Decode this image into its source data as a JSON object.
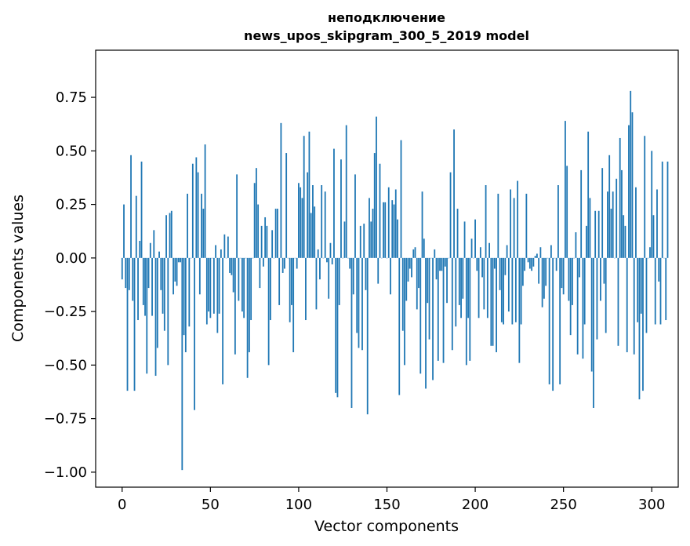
{
  "chart_data": {
    "type": "bar",
    "title_line1": "неподключение",
    "title_line2": "news_upos_skipgram_300_5_2019 model",
    "xlabel": "Vector components",
    "ylabel": "Components values",
    "xlim": [
      -15,
      315
    ],
    "ylim": [
      -1.07,
      0.97
    ],
    "xticks": [
      0,
      50,
      100,
      150,
      200,
      250,
      300
    ],
    "xtick_labels": [
      "0",
      "50",
      "100",
      "150",
      "200",
      "250",
      "300"
    ],
    "yticks": [
      -1.0,
      -0.75,
      -0.5,
      -0.25,
      0.0,
      0.25,
      0.5,
      0.75
    ],
    "ytick_labels": [
      "−1.00",
      "−0.75",
      "−0.50",
      "−0.25",
      "0.00",
      "0.25",
      "0.50",
      "0.75"
    ],
    "bar_color": "#1f77b4",
    "series": [
      {
        "name": "components",
        "values": [
          -0.1,
          0.25,
          -0.14,
          -0.62,
          -0.15,
          0.48,
          -0.2,
          -0.62,
          0.29,
          -0.29,
          0.08,
          0.45,
          -0.22,
          -0.27,
          -0.54,
          -0.14,
          0.07,
          -0.27,
          0.13,
          -0.55,
          -0.42,
          0.03,
          -0.15,
          -0.26,
          -0.34,
          0.2,
          -0.5,
          0.21,
          0.22,
          -0.17,
          -0.11,
          -0.13,
          -0.02,
          -0.02,
          -0.99,
          -0.36,
          -0.44,
          0.3,
          -0.32,
          0.0,
          0.44,
          -0.71,
          0.47,
          0.4,
          -0.17,
          0.3,
          0.23,
          0.53,
          -0.31,
          -0.25,
          -0.28,
          0.0,
          -0.26,
          0.06,
          -0.35,
          -0.26,
          0.04,
          -0.59,
          0.11,
          0.0,
          0.1,
          -0.07,
          -0.08,
          -0.16,
          -0.45,
          0.39,
          -0.2,
          0.0,
          -0.25,
          -0.28,
          0.0,
          -0.56,
          -0.44,
          -0.29,
          0.0,
          0.35,
          0.42,
          0.25,
          -0.14,
          0.15,
          -0.04,
          0.19,
          0.15,
          -0.5,
          -0.29,
          0.13,
          0.0,
          0.23,
          0.23,
          -0.22,
          0.63,
          -0.07,
          -0.05,
          0.49,
          0.0,
          -0.3,
          -0.22,
          -0.44,
          0.0,
          -0.05,
          0.35,
          0.33,
          0.28,
          0.57,
          -0.29,
          0.4,
          0.59,
          0.21,
          0.34,
          0.24,
          -0.24,
          0.04,
          -0.1,
          0.34,
          0.0,
          0.31,
          -0.02,
          -0.19,
          0.07,
          -0.03,
          0.51,
          -0.63,
          -0.65,
          -0.22,
          0.46,
          0.0,
          0.17,
          0.62,
          0.0,
          -0.05,
          -0.7,
          -0.17,
          0.39,
          -0.35,
          -0.42,
          0.15,
          -0.43,
          0.16,
          -0.15,
          -0.73,
          0.28,
          0.17,
          0.23,
          0.49,
          0.66,
          -0.12,
          0.44,
          0.0,
          0.26,
          0.26,
          0.0,
          0.33,
          -0.17,
          0.27,
          0.25,
          0.32,
          0.18,
          -0.64,
          0.55,
          -0.34,
          -0.5,
          -0.2,
          -0.11,
          -0.05,
          -0.09,
          0.04,
          0.05,
          -0.24,
          -0.14,
          -0.54,
          0.31,
          0.09,
          -0.61,
          -0.21,
          -0.38,
          0.0,
          -0.57,
          0.04,
          -0.1,
          -0.48,
          -0.06,
          -0.06,
          -0.49,
          -0.04,
          -0.21,
          0.0,
          0.4,
          -0.43,
          0.6,
          -0.32,
          0.23,
          -0.22,
          -0.28,
          -0.19,
          0.17,
          -0.5,
          -0.28,
          -0.48,
          0.09,
          0.0,
          0.18,
          -0.06,
          -0.28,
          0.05,
          -0.09,
          -0.24,
          0.34,
          -0.28,
          0.07,
          -0.41,
          -0.41,
          -0.05,
          -0.44,
          0.3,
          -0.15,
          -0.3,
          -0.31,
          -0.08,
          0.06,
          -0.25,
          0.32,
          -0.31,
          0.28,
          -0.3,
          0.36,
          -0.49,
          -0.31,
          -0.13,
          -0.06,
          0.3,
          -0.02,
          -0.05,
          -0.06,
          -0.04,
          0.01,
          0.02,
          -0.12,
          0.05,
          -0.23,
          -0.19,
          -0.13,
          0.0,
          -0.59,
          0.06,
          -0.62,
          0.0,
          -0.06,
          0.34,
          -0.59,
          -0.14,
          -0.17,
          0.64,
          0.43,
          -0.2,
          -0.36,
          -0.22,
          0.0,
          0.12,
          -0.45,
          -0.09,
          0.41,
          -0.47,
          -0.31,
          0.15,
          0.59,
          0.28,
          -0.53,
          -0.7,
          0.22,
          -0.38,
          0.22,
          -0.2,
          0.42,
          -0.12,
          -0.35,
          0.31,
          0.48,
          0.23,
          0.31,
          0.0,
          0.37,
          -0.41,
          0.56,
          0.41,
          0.2,
          0.15,
          -0.44,
          0.62,
          0.78,
          0.68,
          -0.45,
          0.33,
          -0.3,
          -0.66,
          -0.26,
          -0.62,
          0.57,
          -0.35,
          0.0,
          0.05,
          0.5,
          0.2,
          -0.31,
          0.32,
          -0.11,
          -0.31,
          0.45,
          0.0,
          -0.29,
          0.45
        ]
      }
    ]
  }
}
